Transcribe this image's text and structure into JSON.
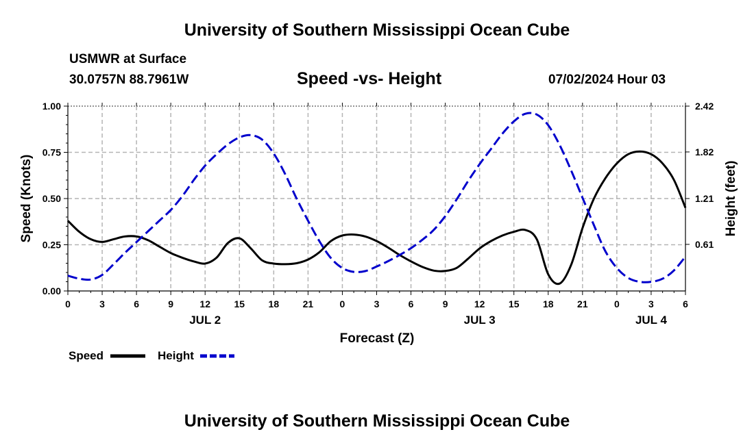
{
  "header": {
    "title": "University of Southern Mississippi Ocean Cube",
    "station": "USMWR at Surface",
    "coords": "30.0757N  88.7961W",
    "datetime": "07/02/2024 Hour 03"
  },
  "footer": {
    "title": "University of Southern Mississippi Ocean Cube"
  },
  "colors": {
    "speed": "#000000",
    "height": "#0000cc",
    "grid": "#b4b4b4"
  },
  "chart_data": {
    "type": "line",
    "title": "Speed -vs- Height",
    "xlabel": "Forecast (Z)",
    "ylabel": "Speed (Knots)",
    "y2label": "Height (feet)",
    "x_unit": "hours since JUL 2 00Z",
    "xlim": [
      0,
      54
    ],
    "ylim": [
      0,
      1.0
    ],
    "y2lim": [
      0,
      2.42
    ],
    "x_ticks": [
      0,
      3,
      6,
      9,
      12,
      15,
      18,
      21,
      24,
      27,
      30,
      33,
      36,
      39,
      42,
      45,
      48,
      51,
      54
    ],
    "x_tick_labels": [
      "0",
      "3",
      "6",
      "9",
      "12",
      "15",
      "18",
      "21",
      "0",
      "3",
      "6",
      "9",
      "12",
      "15",
      "18",
      "21",
      "0",
      "3",
      "6"
    ],
    "date_labels": [
      {
        "x": 12,
        "label": "JUL 2"
      },
      {
        "x": 36,
        "label": "JUL 3"
      },
      {
        "x": 51,
        "label": "JUL 4"
      }
    ],
    "y_ticks": [
      0,
      0.25,
      0.5,
      0.75,
      1.0
    ],
    "y_tick_labels": [
      "0.00",
      "0.25",
      "0.50",
      "0.75",
      "1.00"
    ],
    "y2_ticks": [
      0.61,
      1.21,
      1.82,
      2.42
    ],
    "y2_tick_labels": [
      "0.61",
      "1.21",
      "1.82",
      "2.42"
    ],
    "series": [
      {
        "name": "Speed",
        "axis": "left",
        "style": "solid",
        "x": [
          0,
          1,
          2,
          3,
          4,
          5,
          6,
          7,
          8,
          9,
          10,
          11,
          12,
          13,
          14,
          15,
          16,
          17,
          18,
          19,
          20,
          21,
          22,
          23,
          24,
          25,
          26,
          27,
          28,
          29,
          30,
          31,
          32,
          33,
          34,
          35,
          36,
          37,
          38,
          39,
          40,
          41,
          42,
          43,
          44,
          45,
          46,
          47,
          48,
          49,
          50,
          51,
          52,
          53,
          54
        ],
        "values": [
          0.38,
          0.32,
          0.28,
          0.265,
          0.28,
          0.295,
          0.295,
          0.275,
          0.24,
          0.205,
          0.18,
          0.16,
          0.148,
          0.18,
          0.26,
          0.285,
          0.23,
          0.165,
          0.148,
          0.145,
          0.15,
          0.17,
          0.21,
          0.27,
          0.3,
          0.305,
          0.295,
          0.27,
          0.235,
          0.195,
          0.16,
          0.13,
          0.11,
          0.108,
          0.125,
          0.175,
          0.23,
          0.27,
          0.3,
          0.32,
          0.33,
          0.28,
          0.09,
          0.04,
          0.14,
          0.34,
          0.5,
          0.61,
          0.69,
          0.74,
          0.755,
          0.74,
          0.69,
          0.6,
          0.45
        ]
      },
      {
        "name": "Height",
        "axis": "right",
        "style": "dashed",
        "x": [
          0,
          1,
          2,
          3,
          4,
          5,
          6,
          7,
          8,
          9,
          10,
          11,
          12,
          13,
          14,
          15,
          16,
          17,
          18,
          19,
          20,
          21,
          22,
          23,
          24,
          25,
          26,
          27,
          28,
          29,
          30,
          31,
          32,
          33,
          34,
          35,
          36,
          37,
          38,
          39,
          40,
          41,
          42,
          43,
          44,
          45,
          46,
          47,
          48,
          49,
          50,
          51,
          52,
          53,
          54
        ],
        "values": [
          0.2,
          0.16,
          0.15,
          0.21,
          0.35,
          0.5,
          0.64,
          0.78,
          0.92,
          1.06,
          1.24,
          1.45,
          1.64,
          1.79,
          1.92,
          2.01,
          2.04,
          1.98,
          1.8,
          1.53,
          1.21,
          0.92,
          0.65,
          0.43,
          0.3,
          0.25,
          0.26,
          0.32,
          0.39,
          0.47,
          0.56,
          0.67,
          0.8,
          0.98,
          1.2,
          1.44,
          1.66,
          1.86,
          2.06,
          2.22,
          2.32,
          2.31,
          2.17,
          1.91,
          1.58,
          1.22,
          0.86,
          0.52,
          0.3,
          0.17,
          0.12,
          0.12,
          0.16,
          0.27,
          0.45
        ]
      }
    ],
    "legend": {
      "position": "bottom-left",
      "entries": [
        {
          "label": "Speed",
          "series": "Speed"
        },
        {
          "label": "Height",
          "series": "Height"
        }
      ]
    }
  }
}
